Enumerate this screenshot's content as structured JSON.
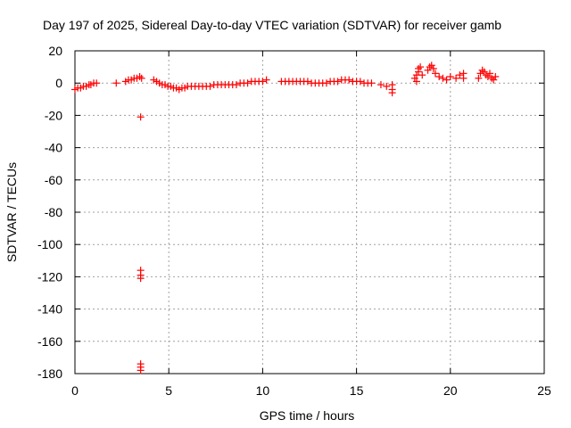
{
  "chart_data": {
    "type": "scatter",
    "title": "Day 197 of 2025, Sidereal Day-to-day VTEC variation (SDTVAR) for receiver gamb",
    "xlabel": "GPS time / hours",
    "ylabel": "SDTVAR / TECUs",
    "xlim": [
      0,
      25
    ],
    "ylim": [
      -180,
      20
    ],
    "xticks": [
      0,
      5,
      10,
      15,
      20,
      25
    ],
    "yticks": [
      20,
      0,
      -20,
      -40,
      -60,
      -80,
      -100,
      -120,
      -140,
      -160,
      -180
    ],
    "grid": true,
    "marker": "plus",
    "color": "#ff0000",
    "series": [
      {
        "name": "SDTVAR",
        "x": [
          0.0,
          0.15,
          0.3,
          0.45,
          0.6,
          0.75,
          0.85,
          1.0,
          1.15,
          2.2,
          2.7,
          2.85,
          3.0,
          3.15,
          3.3,
          3.45,
          3.55,
          3.5,
          3.5,
          3.5,
          3.5,
          3.5,
          3.5,
          3.5,
          4.2,
          4.35,
          4.5,
          4.65,
          4.8,
          4.95,
          5.1,
          5.25,
          5.4,
          5.55,
          5.7,
          5.85,
          6.0,
          6.2,
          6.4,
          6.6,
          6.8,
          7.0,
          7.2,
          7.4,
          7.6,
          7.8,
          8.0,
          8.2,
          8.4,
          8.6,
          8.8,
          9.0,
          9.2,
          9.4,
          9.6,
          9.8,
          10.0,
          10.2,
          11.0,
          11.2,
          11.4,
          11.6,
          11.8,
          12.0,
          12.2,
          12.4,
          12.6,
          12.8,
          13.0,
          13.2,
          13.4,
          13.6,
          13.8,
          14.0,
          14.2,
          14.4,
          14.6,
          14.8,
          15.0,
          15.2,
          15.4,
          15.6,
          15.8,
          16.3,
          16.6,
          16.9,
          16.9,
          16.9,
          18.1,
          18.2,
          18.3,
          18.3,
          18.4,
          18.2,
          18.5,
          18.8,
          18.9,
          19.0,
          19.1,
          19.2,
          19.4,
          19.6,
          19.8,
          20.0,
          20.3,
          20.5,
          20.7,
          20.7,
          21.5,
          21.6,
          21.7,
          21.8,
          21.9,
          22.0,
          22.1,
          22.2,
          22.3,
          22.4
        ],
        "y": [
          -4,
          -3,
          -3,
          -2,
          -2,
          -1,
          -1,
          0,
          0,
          0,
          1,
          2,
          2,
          3,
          3,
          4,
          3,
          -21,
          -116,
          -119,
          -121,
          -174,
          -176,
          -178,
          2,
          1,
          0,
          -1,
          -1,
          -2,
          -2,
          -3,
          -3,
          -4,
          -3,
          -3,
          -2,
          -2,
          -2,
          -2,
          -2,
          -2,
          -2,
          -1,
          -1,
          -1,
          -1,
          -1,
          -1,
          -1,
          0,
          0,
          0,
          1,
          1,
          1,
          1,
          2,
          1,
          1,
          1,
          1,
          1,
          1,
          1,
          1,
          0,
          0,
          0,
          0,
          0,
          1,
          1,
          1,
          2,
          2,
          2,
          1,
          1,
          1,
          0,
          0,
          0,
          -1,
          -2,
          -1,
          -4,
          -6,
          3,
          5,
          7,
          9,
          10,
          1,
          5,
          8,
          10,
          11,
          9,
          6,
          4,
          3,
          2,
          4,
          3,
          5,
          6,
          3,
          3,
          6,
          8,
          7,
          5,
          4,
          6,
          3,
          2,
          4
        ]
      }
    ]
  }
}
